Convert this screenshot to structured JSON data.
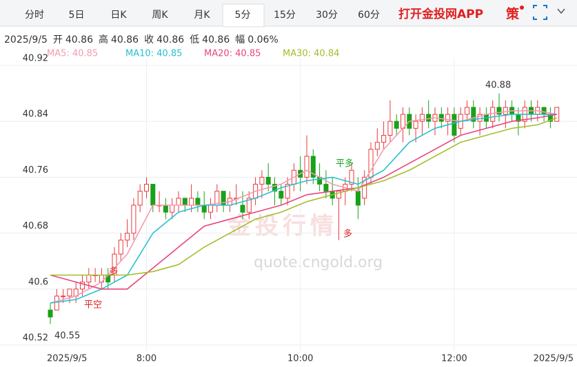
{
  "tabs": [
    "分时",
    "5日",
    "日K",
    "周K",
    "月K",
    "5分",
    "15分",
    "30分",
    "60分"
  ],
  "app_link": "打开金投网APP",
  "strategy_icon": "策",
  "info": {
    "date": "2025/9/5",
    "fields": [
      {
        "label": "开",
        "value": "40.86"
      },
      {
        "label": "高",
        "value": "40.86"
      },
      {
        "label": "收",
        "value": "40.86"
      },
      {
        "label": "低",
        "value": "40.86"
      },
      {
        "label": "幅",
        "value": "0.06%"
      }
    ]
  },
  "watermark": {
    "name": "金投行情",
    "url": "quote.cngold.org"
  },
  "chart_data": {
    "type": "candlestick",
    "categories": [
      "2025/9/5",
      null,
      null,
      null,
      null,
      null,
      null,
      null,
      null,
      null,
      null,
      null,
      null,
      null,
      null,
      "8:00",
      null,
      null,
      null,
      null,
      null,
      null,
      null,
      null,
      null,
      null,
      null,
      null,
      null,
      null,
      null,
      null,
      null,
      null,
      null,
      null,
      null,
      null,
      null,
      "10:00",
      null,
      null,
      null,
      null,
      null,
      null,
      null,
      null,
      null,
      null,
      null,
      null,
      null,
      null,
      null,
      null,
      null,
      null,
      null,
      null,
      null,
      null,
      null,
      "12:00",
      null,
      null,
      null,
      null,
      null,
      null,
      null,
      null,
      null,
      null,
      null,
      null,
      null,
      null,
      null,
      "2025/9/5"
    ],
    "ohlc": [
      [
        40.57,
        40.58,
        40.55,
        40.56
      ],
      [
        40.57,
        40.6,
        40.57,
        40.59
      ],
      [
        40.59,
        40.6,
        40.58,
        40.59
      ],
      [
        40.59,
        40.6,
        40.58,
        40.6
      ],
      [
        40.59,
        40.61,
        40.58,
        40.6
      ],
      [
        40.6,
        40.62,
        40.59,
        40.61
      ],
      [
        40.61,
        40.63,
        40.6,
        40.62
      ],
      [
        40.62,
        40.63,
        40.61,
        40.62
      ],
      [
        40.61,
        40.63,
        40.6,
        40.62
      ],
      [
        40.62,
        40.63,
        40.6,
        40.61
      ],
      [
        40.62,
        40.66,
        40.61,
        40.65
      ],
      [
        40.65,
        40.68,
        40.64,
        40.67
      ],
      [
        40.67,
        40.7,
        40.66,
        40.68
      ],
      [
        40.68,
        40.73,
        40.67,
        40.72
      ],
      [
        40.72,
        40.75,
        40.71,
        40.74
      ],
      [
        40.74,
        40.76,
        40.73,
        40.75
      ],
      [
        40.75,
        40.75,
        40.71,
        40.72
      ],
      [
        40.72,
        40.74,
        40.71,
        40.72
      ],
      [
        40.72,
        40.73,
        40.7,
        40.71
      ],
      [
        40.71,
        40.73,
        40.7,
        40.72
      ],
      [
        40.72,
        40.74,
        40.71,
        40.73
      ],
      [
        40.73,
        40.73,
        40.71,
        40.72
      ],
      [
        40.72,
        40.75,
        40.71,
        40.73
      ],
      [
        40.73,
        40.74,
        40.71,
        40.72
      ],
      [
        40.72,
        40.74,
        40.7,
        40.71
      ],
      [
        40.71,
        40.73,
        40.7,
        40.72
      ],
      [
        40.72,
        40.75,
        40.71,
        40.74
      ],
      [
        40.74,
        40.74,
        40.71,
        40.72
      ],
      [
        40.72,
        40.74,
        40.71,
        40.73
      ],
      [
        40.73,
        40.75,
        40.72,
        40.73
      ],
      [
        40.72,
        40.74,
        40.7,
        40.71
      ],
      [
        40.71,
        40.74,
        40.7,
        40.73
      ],
      [
        40.73,
        40.76,
        40.72,
        40.75
      ],
      [
        40.75,
        40.77,
        40.73,
        40.76
      ],
      [
        40.76,
        40.78,
        40.74,
        40.75
      ],
      [
        40.75,
        40.76,
        40.72,
        40.74
      ],
      [
        40.74,
        40.75,
        40.72,
        40.73
      ],
      [
        40.73,
        40.76,
        40.72,
        40.75
      ],
      [
        40.75,
        40.78,
        40.74,
        40.77
      ],
      [
        40.77,
        40.79,
        40.74,
        40.76
      ],
      [
        40.76,
        40.82,
        40.75,
        40.79
      ],
      [
        40.79,
        40.8,
        40.75,
        40.76
      ],
      [
        40.76,
        40.78,
        40.74,
        40.75
      ],
      [
        40.75,
        40.77,
        40.73,
        40.74
      ],
      [
        40.74,
        40.76,
        40.72,
        40.73
      ],
      [
        40.73,
        40.74,
        40.67,
        40.74
      ],
      [
        40.74,
        40.76,
        40.72,
        40.75
      ],
      [
        40.75,
        40.78,
        40.74,
        40.77
      ],
      [
        40.74,
        40.76,
        40.7,
        40.72
      ],
      [
        40.73,
        40.77,
        40.72,
        40.76
      ],
      [
        40.76,
        40.81,
        40.75,
        40.8
      ],
      [
        40.8,
        40.83,
        40.79,
        40.81
      ],
      [
        40.81,
        40.84,
        40.8,
        40.82
      ],
      [
        40.82,
        40.87,
        40.81,
        40.84
      ],
      [
        40.84,
        40.85,
        40.82,
        40.83
      ],
      [
        40.83,
        40.86,
        40.81,
        40.85
      ],
      [
        40.85,
        40.86,
        40.82,
        40.83
      ],
      [
        40.83,
        40.85,
        40.81,
        40.84
      ],
      [
        40.84,
        40.86,
        40.82,
        40.85
      ],
      [
        40.85,
        40.87,
        40.83,
        40.84
      ],
      [
        40.84,
        40.86,
        40.82,
        40.85
      ],
      [
        40.85,
        40.86,
        40.83,
        40.84
      ],
      [
        40.84,
        40.86,
        40.82,
        40.85
      ],
      [
        40.85,
        40.86,
        40.81,
        40.82
      ],
      [
        40.83,
        40.86,
        40.82,
        40.85
      ],
      [
        40.85,
        40.87,
        40.84,
        40.86
      ],
      [
        40.86,
        40.87,
        40.83,
        40.84
      ],
      [
        40.84,
        40.86,
        40.82,
        40.85
      ],
      [
        40.85,
        40.86,
        40.83,
        40.84
      ],
      [
        40.84,
        40.87,
        40.83,
        40.86
      ],
      [
        40.86,
        40.88,
        40.84,
        40.85
      ],
      [
        40.85,
        40.87,
        40.83,
        40.86
      ],
      [
        40.86,
        40.87,
        40.84,
        40.85
      ],
      [
        40.85,
        40.86,
        40.82,
        40.84
      ],
      [
        40.84,
        40.87,
        40.83,
        40.86
      ],
      [
        40.86,
        40.87,
        40.84,
        40.85
      ],
      [
        40.85,
        40.87,
        40.84,
        40.86
      ],
      [
        40.86,
        40.86,
        40.84,
        40.85
      ],
      [
        40.85,
        40.86,
        40.83,
        40.84
      ],
      [
        40.84,
        40.86,
        40.84,
        40.86
      ]
    ],
    "up_color": "#e8383d",
    "down_color": "#1aa01a",
    "series": [
      {
        "name": "MA5: 40.85",
        "color": "#f39bb0",
        "x": [
          0,
          4,
          8,
          12,
          16,
          20,
          24,
          28,
          32,
          36,
          40,
          44,
          48,
          52,
          56,
          60,
          64,
          68,
          72,
          76,
          79
        ],
        "values": [
          40.58,
          40.59,
          40.61,
          40.65,
          40.72,
          40.72,
          40.72,
          40.725,
          40.74,
          40.75,
          40.77,
          40.75,
          40.74,
          40.8,
          40.84,
          40.845,
          40.84,
          40.85,
          40.855,
          40.855,
          40.85
        ]
      },
      {
        "name": "MA10: 40.85",
        "color": "#26c0d0",
        "x": [
          0,
          4,
          8,
          12,
          16,
          20,
          24,
          28,
          32,
          36,
          40,
          44,
          48,
          52,
          56,
          60,
          64,
          68,
          72,
          76,
          79
        ],
        "values": [
          40.58,
          40.585,
          40.6,
          40.62,
          40.68,
          40.71,
          40.72,
          40.72,
          40.73,
          40.745,
          40.755,
          40.76,
          40.75,
          40.77,
          40.81,
          40.83,
          40.84,
          40.845,
          40.85,
          40.85,
          40.85
        ]
      },
      {
        "name": "MA20: 40.85",
        "color": "#e8457a",
        "x": [
          0,
          4,
          8,
          12,
          16,
          20,
          24,
          28,
          32,
          36,
          40,
          44,
          48,
          52,
          56,
          60,
          64,
          68,
          72,
          76,
          79
        ],
        "values": [
          40.62,
          40.61,
          40.6,
          40.6,
          40.63,
          40.66,
          40.69,
          40.7,
          40.71,
          40.72,
          40.735,
          40.74,
          40.745,
          40.76,
          40.78,
          40.8,
          40.82,
          40.83,
          40.84,
          40.845,
          40.85
        ]
      },
      {
        "name": "MA30: 40.84",
        "color": "#a3bd2a",
        "x": [
          0,
          4,
          8,
          12,
          16,
          20,
          24,
          28,
          32,
          36,
          40,
          44,
          48,
          52,
          56,
          60,
          64,
          68,
          72,
          76,
          79
        ],
        "values": [
          40.62,
          40.62,
          40.62,
          40.62,
          40.625,
          40.635,
          40.66,
          40.68,
          40.7,
          40.71,
          40.725,
          40.735,
          40.745,
          40.755,
          40.77,
          40.79,
          40.81,
          40.82,
          40.83,
          40.835,
          40.845
        ]
      }
    ],
    "ylim": [
      40.52,
      40.92
    ],
    "yticks": [
      40.52,
      40.6,
      40.68,
      40.76,
      40.84,
      40.92
    ],
    "grid": true,
    "annotations": [
      "40.88",
      "40.55",
      "平空",
      "多",
      "平多",
      "多"
    ]
  }
}
